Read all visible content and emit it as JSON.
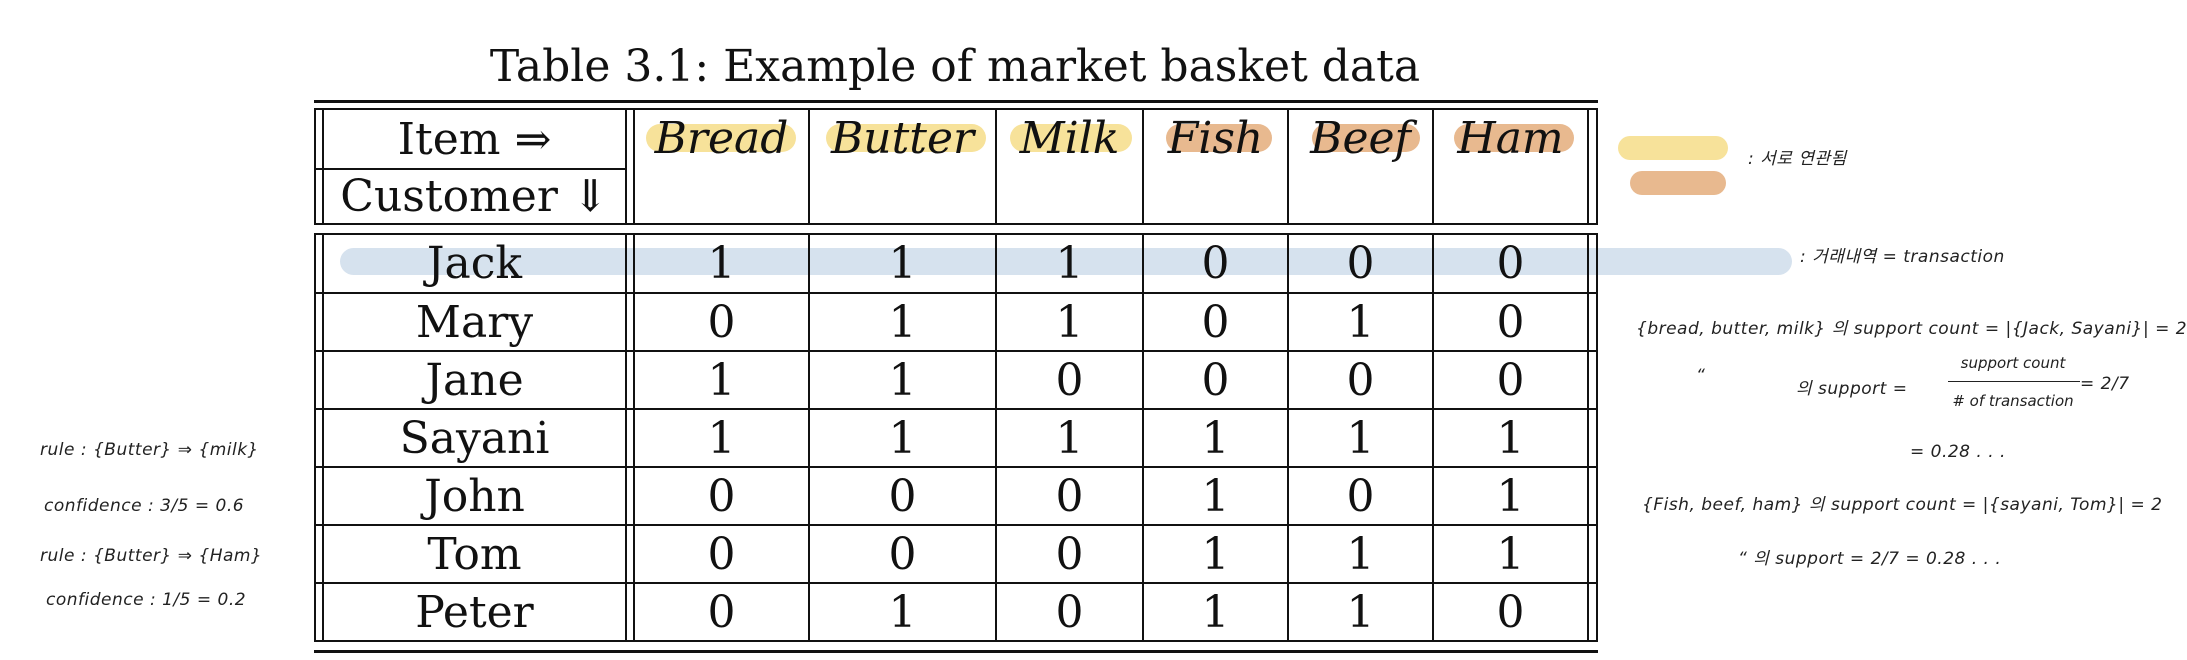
{
  "caption": "Table 3.1: Example of market basket data",
  "header": {
    "item_label": "Item ⇒",
    "customer_label": "Customer ⇓",
    "columns": [
      "Bread",
      "Butter",
      "Milk",
      "Fish",
      "Beef",
      "Ham"
    ]
  },
  "rows": [
    {
      "name": "Jack",
      "values": [
        "1",
        "1",
        "1",
        "0",
        "0",
        "0"
      ]
    },
    {
      "name": "Mary",
      "values": [
        "0",
        "1",
        "1",
        "0",
        "1",
        "0"
      ]
    },
    {
      "name": "Jane",
      "values": [
        "1",
        "1",
        "0",
        "0",
        "0",
        "0"
      ]
    },
    {
      "name": "Sayani",
      "values": [
        "1",
        "1",
        "1",
        "1",
        "1",
        "1"
      ]
    },
    {
      "name": "John",
      "values": [
        "0",
        "0",
        "0",
        "1",
        "0",
        "1"
      ]
    },
    {
      "name": "Tom",
      "values": [
        "0",
        "0",
        "0",
        "1",
        "1",
        "1"
      ]
    },
    {
      "name": "Peter",
      "values": [
        "0",
        "1",
        "0",
        "1",
        "1",
        "0"
      ]
    }
  ],
  "colors": {
    "highlight_yellow": "#f7e29a",
    "highlight_orange": "#e8b98f",
    "highlight_blue": "#d6e2ee"
  },
  "annotations": {
    "legend_note": ": 서로 연관됨",
    "transaction_note": ": 거래내역 = transaction",
    "right_line1": "{bread, butter, milk} 의 support count = |{Jack, Sayani}| = 2",
    "right_line2_prefix": "“",
    "right_line2_main": "의 support =",
    "right_frac_num": "support count",
    "right_frac_den": "# of transaction",
    "right_line2_suffix": "= 2/7",
    "right_line3": "= 0.28 . . .",
    "right_line4": "{Fish, beef, ham} 의 support count = |{sayani, Tom}| = 2",
    "right_line5": "“   의 support = 2/7 = 0.28 . . .",
    "left_line1": "rule : {Butter} ⇒ {milk}",
    "left_line2": "confidence : 3/5 = 0.6",
    "left_line3": "rule : {Butter} ⇒ {Ham}",
    "left_line4": "confidence : 1/5 = 0.2"
  }
}
